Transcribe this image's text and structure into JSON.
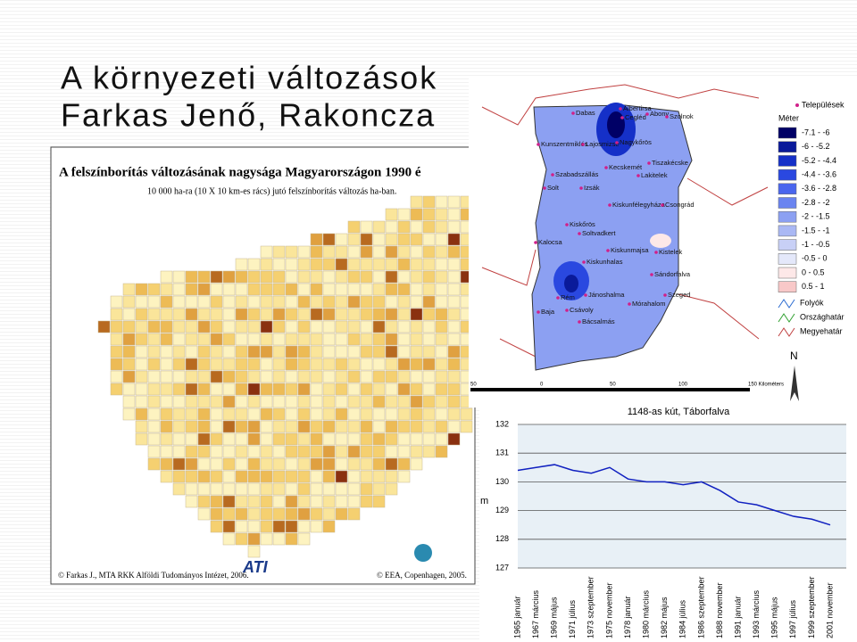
{
  "slide": {
    "title_line1": "A környezeti változások",
    "title_line2": "Farkas Jenő, Rakoncza"
  },
  "map1": {
    "title": "A felszínborítás változásának nagysága Magyarországon 1990 é",
    "subtitle": "10 000 ha-ra (10 X 10 km-es rács) jutó felszínborítás változás ha-ban.",
    "credit_left": "© Farkas J., MTA RKK Alföldi Tudományos Intézet, 2006.",
    "logo": "ATI",
    "credit_right": "© EEA, Copenhagen, 2005."
  },
  "map2": {
    "legend_towns": "Települések",
    "legend_unit": "Méter",
    "legend_classes": [
      {
        "label": "-7.1 - -6",
        "color": "#000066"
      },
      {
        "label": "-6 - -5.2",
        "color": "#0a1a9a"
      },
      {
        "label": "-5.2 - -4.4",
        "color": "#1530c8"
      },
      {
        "label": "-4.4 - -3.6",
        "color": "#2a48e0"
      },
      {
        "label": "-3.6 - -2.8",
        "color": "#4a66ee"
      },
      {
        "label": "-2.8 - -2",
        "color": "#6a84f0"
      },
      {
        "label": "-2 - -1.5",
        "color": "#8ca0f2"
      },
      {
        "label": "-1.5 - -1",
        "color": "#aab8f4"
      },
      {
        "label": "-1 - -0.5",
        "color": "#c8d0f6"
      },
      {
        "label": "-0.5 - 0",
        "color": "#e4e8fa"
      },
      {
        "label": "0 - 0.5",
        "color": "#fde8e8"
      },
      {
        "label": "0.5 - 1",
        "color": "#f8c8c8"
      }
    ],
    "legend_rivers": "Folyók",
    "legend_border": "Országhatár",
    "legend_county": "Megyehatár",
    "north": "N",
    "scale": [
      "50",
      "0",
      "50",
      "100",
      "150 Kilométers"
    ],
    "towns": [
      "Dabas",
      "Albertirsa",
      "Cegléd",
      "Abony",
      "Szolnok",
      "Kunszentmiklós",
      "Lajosmizse",
      "Nagykőrös",
      "Szabadszállás",
      "Kecskemét",
      "Tiszakécske",
      "Lakitelek",
      "Solt",
      "Izsák",
      "Kiskunfélegyháza",
      "Csongrád",
      "Kiskőrös",
      "Soltvadkert",
      "Kalocsa",
      "Kiskunmajsa",
      "Kistelek",
      "Kiskunhalas",
      "Sándorfalva",
      "Rém",
      "Jánoshalma",
      "Szeged",
      "Csávoly",
      "Baja",
      "Mórahalom",
      "Bácsalmás"
    ]
  },
  "chart_data": {
    "type": "line",
    "title": "1148-as kút, Táborfalva",
    "y_label": "m",
    "categories": [
      "1965 január",
      "1967 március",
      "1969 május",
      "1971 július",
      "1973 szeptember",
      "1975 november",
      "1978 január",
      "1980 március",
      "1982 május",
      "1984 július",
      "1986 szeptember",
      "1988 november",
      "1991 január",
      "1993 március",
      "1995 május",
      "1997 július",
      "1999 szeptember",
      "2001 november"
    ],
    "series": [
      {
        "name": "1148-as kút",
        "color": "#1020c0",
        "values": [
          130.4,
          130.5,
          130.6,
          130.4,
          130.3,
          130.5,
          130.1,
          130.0,
          130.0,
          129.9,
          130.0,
          129.7,
          129.3,
          129.2,
          129.0,
          128.8,
          128.7,
          128.5
        ]
      }
    ],
    "ylim": [
      127,
      132
    ],
    "yticks": [
      127,
      128,
      129,
      130,
      131,
      132
    ],
    "grid": true
  }
}
